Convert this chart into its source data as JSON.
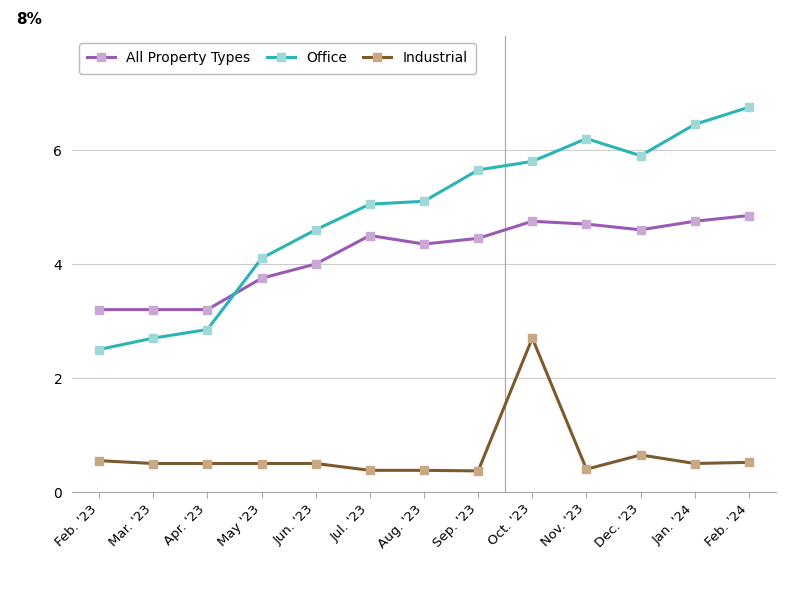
{
  "x_labels": [
    "Feb. '23",
    "Mar. '23",
    "Apr. '23",
    "May '23",
    "Jun. '23",
    "Jul. '23",
    "Aug. '23",
    "Sep. '23",
    "Oct. '23",
    "Nov. '23",
    "Dec. '23",
    "Jan. '24",
    "Feb. '24"
  ],
  "all_property": [
    3.2,
    3.2,
    3.2,
    3.75,
    4.0,
    4.5,
    4.35,
    4.45,
    4.75,
    4.7,
    4.6,
    4.75,
    4.85
  ],
  "office": [
    2.5,
    2.7,
    2.85,
    4.1,
    4.6,
    5.05,
    5.1,
    5.65,
    5.8,
    6.2,
    5.9,
    6.45,
    6.75
  ],
  "industrial": [
    0.55,
    0.5,
    0.5,
    0.5,
    0.5,
    0.38,
    0.38,
    0.37,
    2.7,
    0.4,
    0.65,
    0.5,
    0.52
  ],
  "all_property_color": "#9b59b6",
  "office_color": "#2ab5b5",
  "industrial_color": "#7d5a2e",
  "marker_color_all": "#c9a8d4",
  "marker_color_office": "#a0d8d8",
  "marker_color_industrial": "#c8a882",
  "line_width": 2.2,
  "marker_size": 6,
  "ylim": [
    0,
    8
  ],
  "ytick_values": [
    0,
    2,
    4,
    6
  ],
  "ytick_labels": [
    "0",
    "2",
    "4",
    "6"
  ],
  "bg_color": "#ffffff",
  "grid_color": "#cccccc",
  "legend_labels": [
    "All Property Types",
    "Office",
    "Industrial"
  ]
}
